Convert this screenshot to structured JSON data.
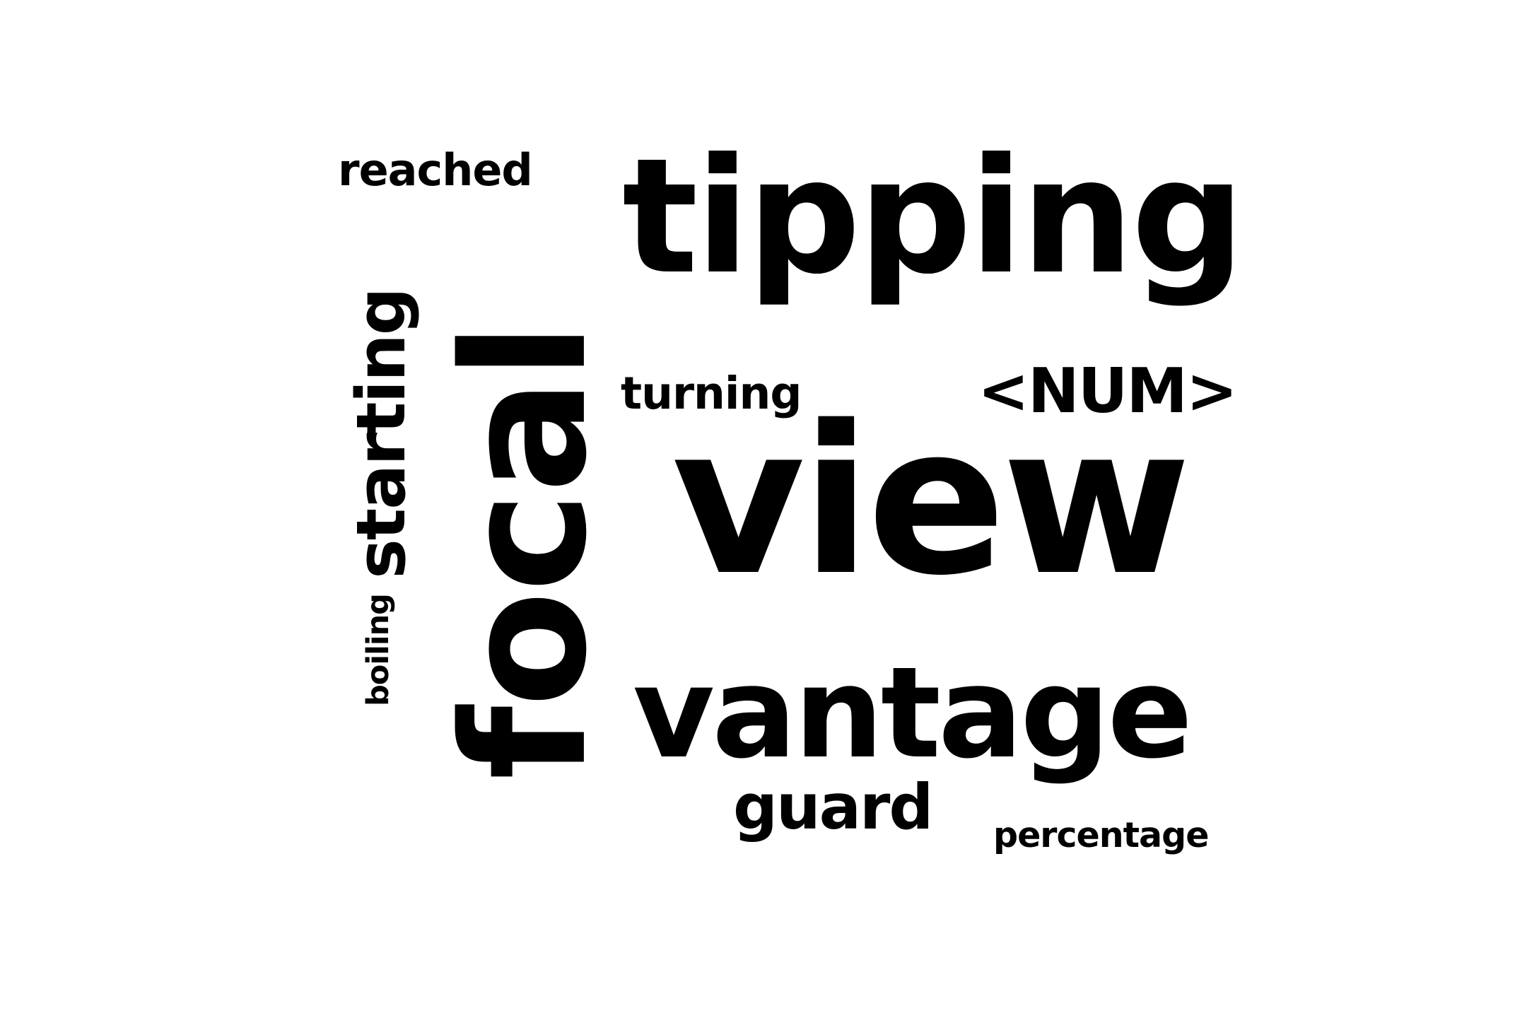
{
  "words": [
    {
      "text": "view",
      "weight": 1.0,
      "rotated": false
    },
    {
      "text": "focal",
      "weight": 0.95,
      "rotated": true
    },
    {
      "text": "tipping",
      "weight": 0.78,
      "rotated": false
    },
    {
      "text": "vantage",
      "weight": 0.72,
      "rotated": false
    },
    {
      "text": "starting",
      "weight": 0.42,
      "rotated": true
    },
    {
      "text": "<NUM>",
      "weight": 0.4,
      "rotated": false
    },
    {
      "text": "guard",
      "weight": 0.38,
      "rotated": false
    },
    {
      "text": "turning",
      "weight": 0.3,
      "rotated": false
    },
    {
      "text": "reached",
      "weight": 0.3,
      "rotated": false
    },
    {
      "text": "percentage",
      "weight": 0.24,
      "rotated": false
    },
    {
      "text": "boiling",
      "weight": 0.22,
      "rotated": true
    }
  ],
  "colors": {
    "text": "#000000",
    "background": "#ffffff"
  }
}
